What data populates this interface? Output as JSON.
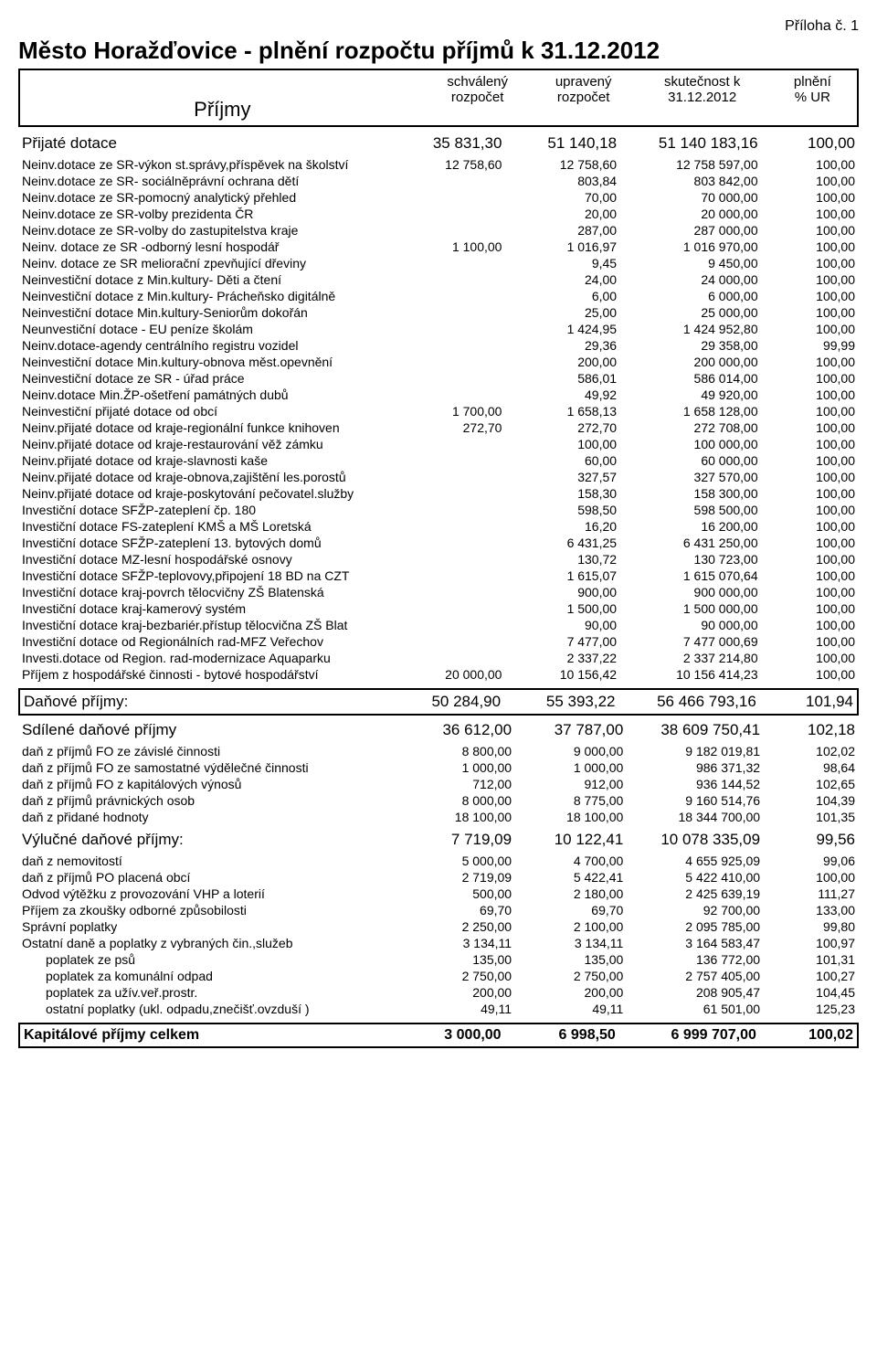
{
  "attachment": "Příloha č. 1",
  "title": "Město Horažďovice - plnění rozpočtu příjmů k 31.12.2012",
  "header": {
    "label": "Příjmy",
    "col1_line1": "schválený",
    "col1_line2": "rozpočet",
    "col2_line1": "upravený",
    "col2_line2": "rozpočet",
    "col3_line1": "skutečnost k",
    "col3_line2": "31.12.2012",
    "col4_line1": "plnění",
    "col4_line2": "% UR"
  },
  "prijate_dotace": {
    "label": "Přijaté dotace",
    "v1": "35 831,30",
    "v2": "51 140,18",
    "v3": "51 140 183,16",
    "v4": "100,00"
  },
  "dotace_rows": [
    {
      "label": "Neinv.dotace ze SR-výkon st.správy,příspěvek na školství",
      "v1": "12 758,60",
      "v2": "12 758,60",
      "v3": "12 758 597,00",
      "v4": "100,00"
    },
    {
      "label": "Neinv.dotace ze SR- sociálněprávní ochrana dětí",
      "v1": "",
      "v2": "803,84",
      "v3": "803 842,00",
      "v4": "100,00"
    },
    {
      "label": "Neinv.dotace ze SR-pomocný analytický přehled",
      "v1": "",
      "v2": "70,00",
      "v3": "70 000,00",
      "v4": "100,00"
    },
    {
      "label": "Neinv.dotace ze SR-volby prezidenta ČR",
      "v1": "",
      "v2": "20,00",
      "v3": "20 000,00",
      "v4": "100,00"
    },
    {
      "label": "Neinv.dotace ze SR-volby do zastupitelstva kraje",
      "v1": "",
      "v2": "287,00",
      "v3": "287 000,00",
      "v4": "100,00"
    },
    {
      "label": "Neinv. dotace ze SR -odborný  lesní hospodář",
      "v1": "1 100,00",
      "v2": "1 016,97",
      "v3": "1 016 970,00",
      "v4": "100,00"
    },
    {
      "label": "Neinv. dotace ze SR meliorační zpevňující dřeviny",
      "v1": "",
      "v2": "9,45",
      "v3": "9 450,00",
      "v4": "100,00"
    },
    {
      "label": "Neinvestiční dotace z Min.kultury- Děti a čtení",
      "v1": "",
      "v2": "24,00",
      "v3": "24 000,00",
      "v4": "100,00"
    },
    {
      "label": "Neinvestiční dotace z Min.kultury- Prácheňsko digitálně",
      "v1": "",
      "v2": "6,00",
      "v3": "6 000,00",
      "v4": "100,00"
    },
    {
      "label": "Neinvestiční dotace Min.kultury-Seniorům dokořán",
      "v1": "",
      "v2": "25,00",
      "v3": "25 000,00",
      "v4": "100,00"
    },
    {
      "label": "Neunvestiční dotace - EU peníze školám",
      "v1": "",
      "v2": "1 424,95",
      "v3": "1 424 952,80",
      "v4": "100,00"
    },
    {
      "label": "Neinv.dotace-agendy centrálního registru vozidel",
      "v1": "",
      "v2": "29,36",
      "v3": "29 358,00",
      "v4": "99,99"
    },
    {
      "label": "Neinvestiční dotace Min.kultury-obnova měst.opevnění",
      "v1": "",
      "v2": "200,00",
      "v3": "200 000,00",
      "v4": "100,00"
    },
    {
      "label": "Neinvestiční dotace ze SR - úřad práce",
      "v1": "",
      "v2": "586,01",
      "v3": "586 014,00",
      "v4": "100,00"
    },
    {
      "label": "Neinv.dotace Min.ŽP-ošetření památných dubů",
      "v1": "",
      "v2": "49,92",
      "v3": "49 920,00",
      "v4": "100,00"
    },
    {
      "label": "Neinvestiční přijaté dotace od obcí",
      "v1": "1 700,00",
      "v2": "1 658,13",
      "v3": "1 658 128,00",
      "v4": "100,00"
    },
    {
      "label": "Neinv.přijaté dotace od kraje-regionální funkce knihoven",
      "v1": "272,70",
      "v2": "272,70",
      "v3": "272 708,00",
      "v4": "100,00"
    },
    {
      "label": "Neinv.přijaté dotace od kraje-restaurování věž zámku",
      "v1": "",
      "v2": "100,00",
      "v3": "100 000,00",
      "v4": "100,00"
    },
    {
      "label": "Neinv.přijaté dotace od kraje-slavnosti kaše",
      "v1": "",
      "v2": "60,00",
      "v3": "60 000,00",
      "v4": "100,00"
    },
    {
      "label": "Neinv.přijaté dotace od kraje-obnova,zajištění les.porostů",
      "v1": "",
      "v2": "327,57",
      "v3": "327 570,00",
      "v4": "100,00"
    },
    {
      "label": "Neinv.přijaté dotace od kraje-poskytování pečovatel.služby",
      "v1": "",
      "v2": "158,30",
      "v3": "158 300,00",
      "v4": "100,00"
    },
    {
      "label": "Investiční dotace SFŽP-zateplení čp. 180",
      "v1": "",
      "v2": "598,50",
      "v3": "598 500,00",
      "v4": "100,00"
    },
    {
      "label": "Investiční dotace FS-zateplení KMŠ a MŠ Loretská",
      "v1": "",
      "v2": "16,20",
      "v3": "16 200,00",
      "v4": "100,00"
    },
    {
      "label": "Investiční dotace SFŽP-zateplení 13. bytových domů",
      "v1": "",
      "v2": "6 431,25",
      "v3": "6 431 250,00",
      "v4": "100,00"
    },
    {
      "label": "Investiční dotace MZ-lesní hospodářské osnovy",
      "v1": "",
      "v2": "130,72",
      "v3": "130 723,00",
      "v4": "100,00"
    },
    {
      "label": "Investiční dotace SFŽP-teplovovy,připojení 18 BD na CZT",
      "v1": "",
      "v2": "1 615,07",
      "v3": "1 615 070,64",
      "v4": "100,00"
    },
    {
      "label": "Investiční dotace kraj-povrch tělocvičny ZŠ Blatenská",
      "v1": "",
      "v2": "900,00",
      "v3": "900 000,00",
      "v4": "100,00"
    },
    {
      "label": "Investiční dotace kraj-kamerový systém",
      "v1": "",
      "v2": "1 500,00",
      "v3": "1 500 000,00",
      "v4": "100,00"
    },
    {
      "label": "Investiční dotace kraj-bezbariér.přístup tělocvična ZŠ Blat",
      "v1": "",
      "v2": "90,00",
      "v3": "90 000,00",
      "v4": "100,00"
    },
    {
      "label": "Investiční dotace od Regionálních rad-MFZ Veřechov",
      "v1": "",
      "v2": "7 477,00",
      "v3": "7 477 000,69",
      "v4": "100,00"
    },
    {
      "label": "Investi.dotace od Region. rad-modernizace Aquaparku",
      "v1": "",
      "v2": "2 337,22",
      "v3": "2 337 214,80",
      "v4": "100,00"
    },
    {
      "label": "Příjem z hospodářské činnosti - bytové hospodářství",
      "v1": "20 000,00",
      "v2": "10 156,42",
      "v3": "10 156 414,23",
      "v4": "100,00"
    }
  ],
  "danove_prijmy": {
    "label": "Daňové příjmy:",
    "v1": "50 284,90",
    "v2": "55 393,22",
    "v3": "56 466 793,16",
    "v4": "101,94"
  },
  "sdilene": {
    "label": "Sdílené daňové příjmy",
    "v1": "36 612,00",
    "v2": "37 787,00",
    "v3": "38 609 750,41",
    "v4": "102,18"
  },
  "sdilene_rows": [
    {
      "label": "daň z příjmů  FO ze závislé činnosti",
      "v1": "8 800,00",
      "v2": "9 000,00",
      "v3": "9 182 019,81",
      "v4": "102,02"
    },
    {
      "label": "daň z příjmů FO ze samostatné výdělečné činnosti",
      "v1": "1 000,00",
      "v2": "1 000,00",
      "v3": "986 371,32",
      "v4": "98,64"
    },
    {
      "label": "daň z příjmů FO z kapitálových výnosů",
      "v1": "712,00",
      "v2": "912,00",
      "v3": "936 144,52",
      "v4": "102,65"
    },
    {
      "label": "daň z příjmů právnických osob",
      "v1": "8 000,00",
      "v2": "8 775,00",
      "v3": "9 160 514,76",
      "v4": "104,39"
    },
    {
      "label": "daň z přidané hodnoty",
      "v1": "18 100,00",
      "v2": "18 100,00",
      "v3": "18 344 700,00",
      "v4": "101,35"
    }
  ],
  "vylucne": {
    "label": "Výlučné daňové příjmy:",
    "v1": "7 719,09",
    "v2": "10 122,41",
    "v3": "10 078 335,09",
    "v4": "99,56"
  },
  "vylucne_rows": [
    {
      "label": "daň z nemovitostí",
      "v1": "5 000,00",
      "v2": "4 700,00",
      "v3": "4 655 925,09",
      "v4": "99,06"
    },
    {
      "label": "daň z příjmů PO placená obcí",
      "v1": "2 719,09",
      "v2": "5 422,41",
      "v3": "5 422 410,00",
      "v4": "100,00"
    }
  ],
  "extra_rows": [
    {
      "label": "Odvod výtěžku z provozování VHP a loterií",
      "v1": "500,00",
      "v2": "2 180,00",
      "v3": "2 425 639,19",
      "v4": "111,27"
    },
    {
      "label": "Příjem za zkoušky odborné způsobilosti",
      "v1": "69,70",
      "v2": "69,70",
      "v3": "92 700,00",
      "v4": "133,00"
    },
    {
      "label": "Správní poplatky",
      "v1": "2 250,00",
      "v2": "2 100,00",
      "v3": "2 095 785,00",
      "v4": "99,80"
    },
    {
      "label": "Ostatní daně a poplatky z vybraných čin.,služeb",
      "v1": "3 134,11",
      "v2": "3 134,11",
      "v3": "3 164 583,47",
      "v4": "100,97"
    }
  ],
  "poplatky_rows": [
    {
      "label": "poplatek ze psů",
      "v1": "135,00",
      "v2": "135,00",
      "v3": "136 772,00",
      "v4": "101,31"
    },
    {
      "label": "poplatek za komunální odpad",
      "v1": "2 750,00",
      "v2": "2 750,00",
      "v3": "2 757 405,00",
      "v4": "100,27"
    },
    {
      "label": "poplatek za užív.veř.prostr.",
      "v1": "200,00",
      "v2": "200,00",
      "v3": "208 905,47",
      "v4": "104,45"
    },
    {
      "label": "ostatní poplatky (ukl. odpadu,znečišť.ovzduší )",
      "v1": "49,11",
      "v2": "49,11",
      "v3": "61 501,00",
      "v4": "125,23"
    }
  ],
  "kapitalove": {
    "label": "Kapitálové příjmy celkem",
    "v1": "3 000,00",
    "v2": "6 998,50",
    "v3": "6 999 707,00",
    "v4": "100,02"
  }
}
